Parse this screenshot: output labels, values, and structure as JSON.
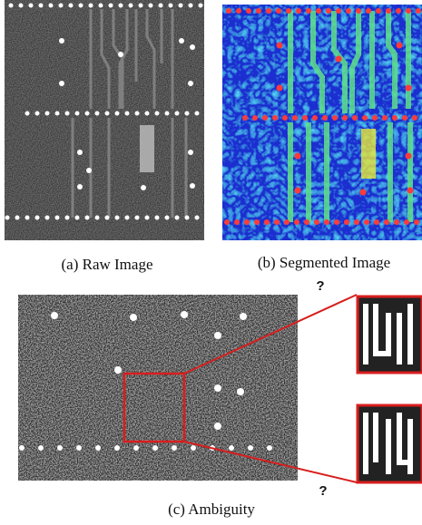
{
  "figure": {
    "panels": [
      {
        "caption": "(a) Raw Image"
      },
      {
        "caption": "(b) Segmented Image"
      },
      {
        "caption": "(c) Ambiguity"
      }
    ],
    "question_marks": [
      "?",
      "?"
    ]
  }
}
